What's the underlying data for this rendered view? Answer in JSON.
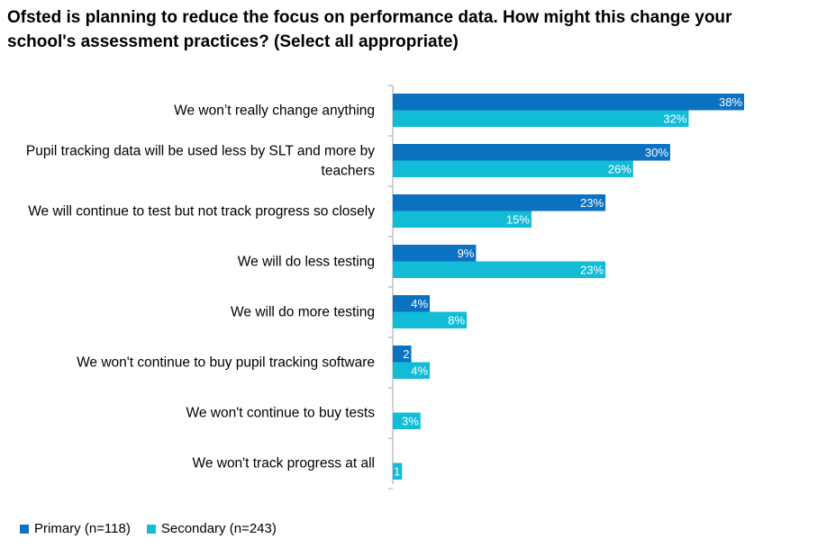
{
  "chart_data": {
    "type": "bar",
    "orientation": "horizontal",
    "title": "Ofsted is planning to reduce the focus on performance data. How might this change your school's assessment practices? (Select all appropriate)",
    "categories": [
      [
        "We won’t really change anything"
      ],
      [
        "Pupil tracking data will be used less by SLT and more by",
        "teachers"
      ],
      [
        "We will continue to test but not track progress so closely"
      ],
      [
        "We will do less testing"
      ],
      [
        "We will do more testing"
      ],
      [
        "We won't continue to buy pupil tracking software"
      ],
      [
        "We won't continue to buy tests"
      ],
      [
        "We won't track progress at all"
      ]
    ],
    "series": [
      {
        "name": "Primary (n=118)",
        "color": "#0b72c2",
        "values": [
          38,
          30,
          23,
          9,
          4,
          2,
          0,
          0
        ],
        "labels": [
          "38%",
          "30%",
          "23%",
          "9%",
          "4%",
          "2",
          "",
          ""
        ]
      },
      {
        "name": "Secondary (n=243)",
        "color": "#13bcd6",
        "values": [
          32,
          26,
          15,
          23,
          8,
          4,
          3,
          1
        ],
        "labels": [
          "32%",
          "26%",
          "15%",
          "23%",
          "8%",
          "4%",
          "3%",
          "1"
        ]
      }
    ],
    "xlim": [
      0,
      40
    ],
    "grid": false,
    "legend_position": "bottom-left"
  }
}
